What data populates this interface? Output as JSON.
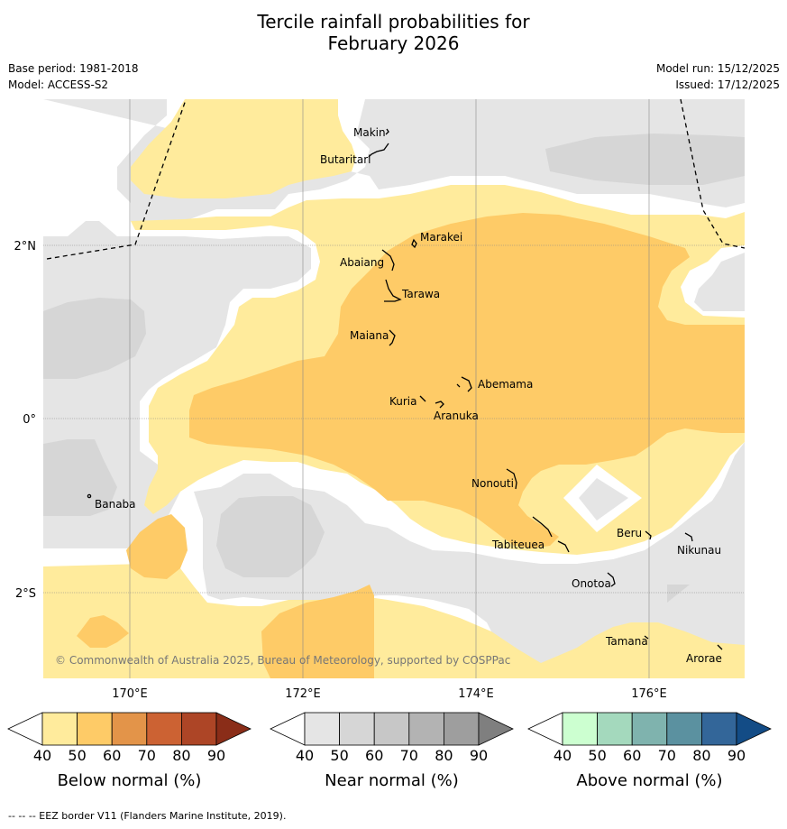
{
  "title_line1": "Tercile rainfall probabilities for",
  "title_line2": "February 2026",
  "meta": {
    "base_period": "Base period: 1981-2018",
    "model": "Model: ACCESS-S2",
    "model_run": "Model run: 15/12/2025",
    "issued": "Issued: 17/12/2025"
  },
  "axes": {
    "x_ticks": [
      "170°E",
      "172°E",
      "174°E",
      "176°E"
    ],
    "y_ticks": [
      "2°N",
      "0°",
      "2°S"
    ]
  },
  "places": {
    "makin": "Makin",
    "butaritari": "Butaritari",
    "marakei": "Marakei",
    "abaiang": "Abaiang",
    "tarawa": "Tarawa",
    "maiana": "Maiana",
    "abemama": "Abemama",
    "kuria": "Kuria",
    "aranuka": "Aranuka",
    "banaba": "Banaba",
    "nonouti": "Nonouti",
    "tabiteuea": "Tabiteuea",
    "beru": "Beru",
    "nikunau": "Nikunau",
    "onotoa": "Onotoa",
    "tamana": "Tamana",
    "arorae": "Arorae"
  },
  "copyright": "© Commonwealth of Australia 2025, Bureau of Meteorology, supported by COSPPac",
  "colorbars": [
    {
      "title": "Below normal (%)",
      "ticks": [
        "40",
        "50",
        "60",
        "70",
        "80",
        "90"
      ],
      "colors": [
        "#ffffff",
        "#ffeb9c",
        "#fecb67",
        "#e39449",
        "#cc6233",
        "#ad4526",
        "#8a2d18"
      ]
    },
    {
      "title": "Near normal (%)",
      "ticks": [
        "40",
        "50",
        "60",
        "70",
        "80",
        "90"
      ],
      "colors": [
        "#ffffff",
        "#e5e5e5",
        "#d6d6d6",
        "#c7c7c7",
        "#b3b3b3",
        "#9e9e9e",
        "#7f7f7f"
      ]
    },
    {
      "title": "Above normal (%)",
      "ticks": [
        "40",
        "50",
        "60",
        "70",
        "80",
        "90"
      ],
      "colors": [
        "#ffffff",
        "#ccffd0",
        "#a4d9bd",
        "#7fb3ae",
        "#5b91a0",
        "#336699",
        "#134c86"
      ]
    }
  ],
  "footer": "--  --  -- EEZ border V11 (Flanders Marine Institute, 2019)."
}
